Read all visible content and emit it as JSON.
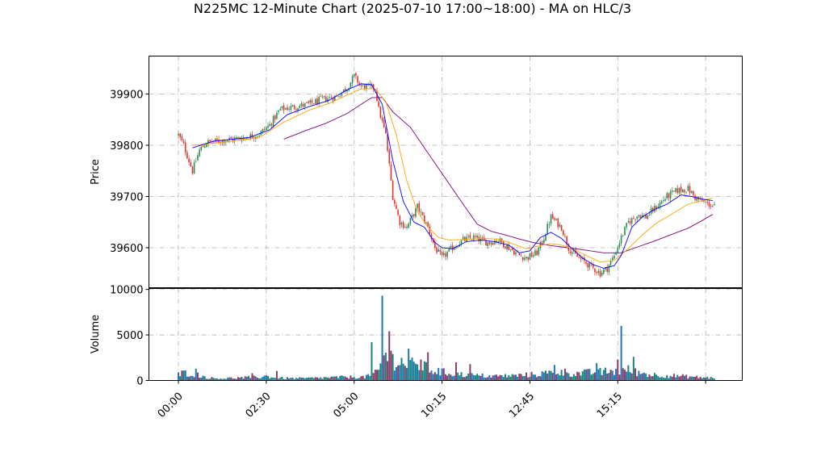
{
  "chart_data": {
    "type": "candlestick",
    "title": "N225MC 12-Minute Chart (2025-07-10 17:00~18:00) - MA on HLC/3",
    "ylabel_price": "Price",
    "ylabel_volume": "Volume",
    "x_ticks": [
      "00:00",
      "02:30",
      "05:00",
      "10:15",
      "12:45",
      "15:15"
    ],
    "price_ticks": [
      39600,
      39700,
      39800,
      39900
    ],
    "volume_ticks": [
      0,
      5000,
      10000
    ],
    "price_ylim": [
      39522,
      39974
    ],
    "volume_ylim": [
      0,
      10100
    ],
    "grid": true,
    "colors": {
      "up": "#2e8b57",
      "down": "#e8322a",
      "ma_fast": "#0000ff",
      "ma_mid": "#ffa500",
      "ma_slow": "#800080",
      "vol_a": "#1f77b4",
      "vol_b": "#17877a",
      "vol_c": "#8c3b6b"
    },
    "price_anchors": [
      [
        0,
        39820
      ],
      [
        3,
        39800
      ],
      [
        6,
        39770
      ],
      [
        8,
        39750
      ],
      [
        12,
        39790
      ],
      [
        16,
        39805
      ],
      [
        26,
        39810
      ],
      [
        38,
        39815
      ],
      [
        46,
        39822
      ],
      [
        52,
        39840
      ],
      [
        58,
        39870
      ],
      [
        66,
        39875
      ],
      [
        74,
        39880
      ],
      [
        82,
        39890
      ],
      [
        90,
        39895
      ],
      [
        96,
        39912
      ],
      [
        100,
        39935
      ],
      [
        104,
        39915
      ],
      [
        112,
        39912
      ],
      [
        114,
        39870
      ],
      [
        118,
        39820
      ],
      [
        122,
        39700
      ],
      [
        126,
        39650
      ],
      [
        130,
        39640
      ],
      [
        136,
        39680
      ],
      [
        142,
        39640
      ],
      [
        146,
        39600
      ],
      [
        150,
        39580
      ],
      [
        156,
        39600
      ],
      [
        162,
        39615
      ],
      [
        168,
        39620
      ],
      [
        176,
        39610
      ],
      [
        182,
        39615
      ],
      [
        188,
        39600
      ],
      [
        194,
        39585
      ],
      [
        198,
        39580
      ],
      [
        204,
        39590
      ],
      [
        208,
        39620
      ],
      [
        212,
        39660
      ],
      [
        218,
        39640
      ],
      [
        222,
        39600
      ],
      [
        226,
        39585
      ],
      [
        230,
        39575
      ],
      [
        236,
        39560
      ],
      [
        240,
        39550
      ],
      [
        244,
        39560
      ],
      [
        248,
        39585
      ],
      [
        252,
        39620
      ],
      [
        256,
        39650
      ],
      [
        262,
        39665
      ],
      [
        266,
        39660
      ],
      [
        272,
        39680
      ],
      [
        278,
        39700
      ],
      [
        284,
        39712
      ],
      [
        290,
        39715
      ],
      [
        294,
        39698
      ],
      [
        298,
        39690
      ],
      [
        302,
        39685
      ],
      [
        305,
        39680
      ]
    ],
    "ma_fast": [
      [
        8,
        39795
      ],
      [
        20,
        39808
      ],
      [
        40,
        39815
      ],
      [
        52,
        39830
      ],
      [
        62,
        39860
      ],
      [
        74,
        39875
      ],
      [
        86,
        39888
      ],
      [
        96,
        39908
      ],
      [
        104,
        39920
      ],
      [
        110,
        39918
      ],
      [
        116,
        39880
      ],
      [
        122,
        39770
      ],
      [
        128,
        39690
      ],
      [
        134,
        39650
      ],
      [
        140,
        39640
      ],
      [
        146,
        39610
      ],
      [
        150,
        39600
      ],
      [
        156,
        39598
      ],
      [
        164,
        39612
      ],
      [
        172,
        39615
      ],
      [
        180,
        39612
      ],
      [
        188,
        39605
      ],
      [
        194,
        39590
      ],
      [
        200,
        39594
      ],
      [
        206,
        39620
      ],
      [
        212,
        39630
      ],
      [
        218,
        39618
      ],
      [
        224,
        39598
      ],
      [
        230,
        39580
      ],
      [
        236,
        39567
      ],
      [
        242,
        39560
      ],
      [
        248,
        39565
      ],
      [
        252,
        39585
      ],
      [
        258,
        39640
      ],
      [
        264,
        39660
      ],
      [
        270,
        39673
      ],
      [
        278,
        39685
      ],
      [
        286,
        39703
      ],
      [
        292,
        39700
      ],
      [
        298,
        39695
      ],
      [
        304,
        39692
      ]
    ],
    "ma_mid": [
      [
        8,
        39800
      ],
      [
        26,
        39806
      ],
      [
        46,
        39815
      ],
      [
        60,
        39845
      ],
      [
        74,
        39868
      ],
      [
        86,
        39882
      ],
      [
        96,
        39898
      ],
      [
        104,
        39910
      ],
      [
        112,
        39910
      ],
      [
        118,
        39885
      ],
      [
        124,
        39820
      ],
      [
        130,
        39730
      ],
      [
        136,
        39670
      ],
      [
        142,
        39640
      ],
      [
        148,
        39620
      ],
      [
        154,
        39615
      ],
      [
        162,
        39616
      ],
      [
        172,
        39618
      ],
      [
        182,
        39617
      ],
      [
        190,
        39608
      ],
      [
        198,
        39598
      ],
      [
        206,
        39604
      ],
      [
        212,
        39608
      ],
      [
        218,
        39605
      ],
      [
        224,
        39598
      ],
      [
        232,
        39585
      ],
      [
        240,
        39572
      ],
      [
        248,
        39575
      ],
      [
        256,
        39598
      ],
      [
        264,
        39625
      ],
      [
        272,
        39648
      ],
      [
        282,
        39668
      ],
      [
        290,
        39685
      ],
      [
        298,
        39692
      ],
      [
        304,
        39697
      ]
    ],
    "ma_slow": [
      [
        60,
        39812
      ],
      [
        72,
        39828
      ],
      [
        84,
        39843
      ],
      [
        96,
        39862
      ],
      [
        104,
        39880
      ],
      [
        110,
        39893
      ],
      [
        116,
        39893
      ],
      [
        122,
        39865
      ],
      [
        132,
        39835
      ],
      [
        142,
        39785
      ],
      [
        152,
        39735
      ],
      [
        162,
        39685
      ],
      [
        170,
        39646
      ],
      [
        178,
        39632
      ],
      [
        186,
        39625
      ],
      [
        194,
        39617
      ],
      [
        202,
        39610
      ],
      [
        212,
        39604
      ],
      [
        222,
        39600
      ],
      [
        232,
        39595
      ],
      [
        242,
        39590
      ],
      [
        252,
        39590
      ],
      [
        260,
        39600
      ],
      [
        270,
        39612
      ],
      [
        280,
        39625
      ],
      [
        290,
        39638
      ],
      [
        298,
        39653
      ],
      [
        304,
        39665
      ]
    ],
    "volume_anchors": [
      [
        0,
        700
      ],
      [
        4,
        900
      ],
      [
        8,
        800
      ],
      [
        12,
        600
      ],
      [
        16,
        350
      ],
      [
        20,
        250
      ],
      [
        26,
        250
      ],
      [
        34,
        300
      ],
      [
        40,
        350
      ],
      [
        46,
        400
      ],
      [
        50,
        500
      ],
      [
        56,
        300
      ],
      [
        64,
        250
      ],
      [
        72,
        250
      ],
      [
        80,
        300
      ],
      [
        88,
        350
      ],
      [
        96,
        400
      ],
      [
        104,
        400
      ],
      [
        110,
        450
      ],
      [
        114,
        1200
      ],
      [
        116,
        2500
      ],
      [
        118,
        3000
      ],
      [
        122,
        2500
      ],
      [
        128,
        2000
      ],
      [
        134,
        1700
      ],
      [
        140,
        1500
      ],
      [
        146,
        1100
      ],
      [
        152,
        900
      ],
      [
        160,
        700
      ],
      [
        170,
        550
      ],
      [
        180,
        500
      ],
      [
        190,
        550
      ],
      [
        200,
        650
      ],
      [
        210,
        850
      ],
      [
        218,
        1000
      ],
      [
        226,
        800
      ],
      [
        234,
        900
      ],
      [
        242,
        1000
      ],
      [
        250,
        1100
      ],
      [
        256,
        1200
      ],
      [
        262,
        900
      ],
      [
        270,
        650
      ],
      [
        280,
        550
      ],
      [
        290,
        450
      ],
      [
        298,
        350
      ],
      [
        304,
        300
      ]
    ],
    "volume_spikes": [
      [
        10,
        1300
      ],
      [
        42,
        800
      ],
      [
        56,
        1050
      ],
      [
        108,
        700
      ],
      [
        110,
        4200
      ],
      [
        116,
        9300
      ],
      [
        120,
        5400
      ],
      [
        131,
        3500
      ],
      [
        138,
        2300
      ],
      [
        142,
        3100
      ],
      [
        158,
        2000
      ],
      [
        166,
        1800
      ],
      [
        214,
        1700
      ],
      [
        238,
        1900
      ],
      [
        250,
        2300
      ],
      [
        252,
        6000
      ],
      [
        259,
        2600
      ]
    ]
  }
}
